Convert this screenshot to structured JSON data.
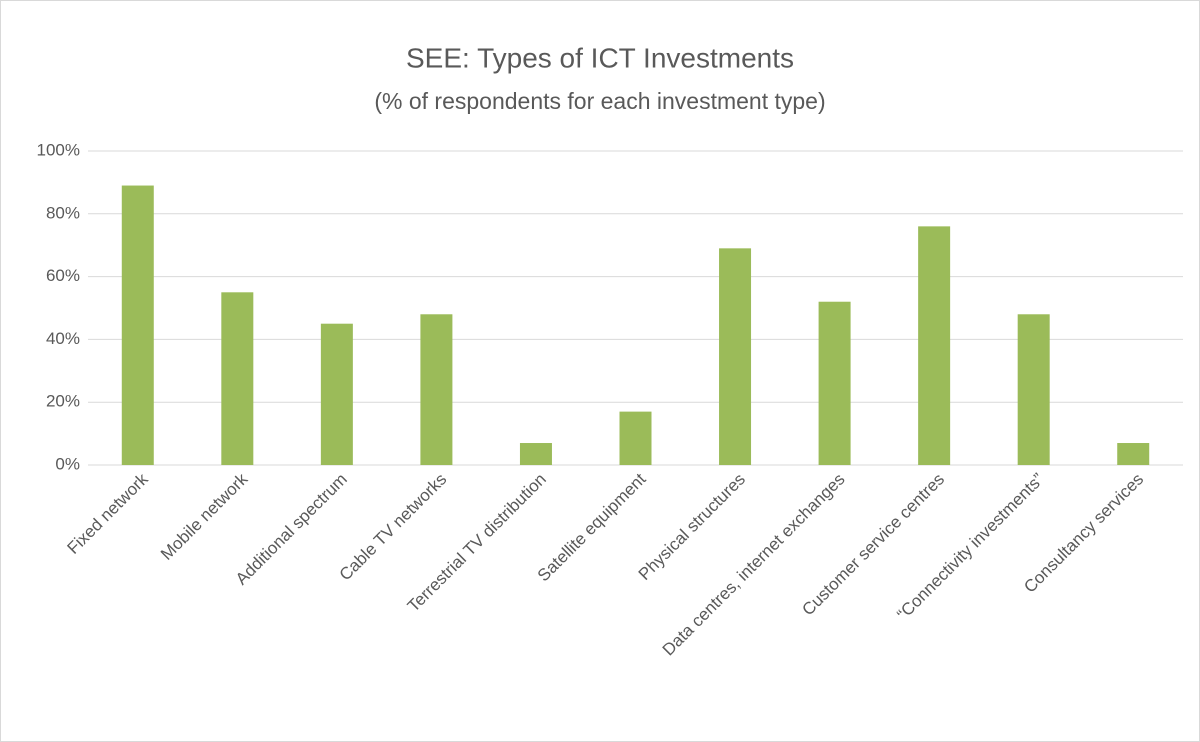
{
  "chart_data": {
    "type": "bar",
    "title": "SEE: Types of ICT Investments",
    "subtitle": "(%  of respondents for each investment type)",
    "categories": [
      "Fixed network",
      "Mobile network",
      "Additional spectrum",
      "Cable TV networks",
      "Terrestrial TV distribution",
      "Satellite equipment",
      "Physical structures",
      "Data centres, internet exchanges",
      "Customer service centres",
      "“Connectivity investments”",
      "Consultancy services"
    ],
    "values": [
      89,
      55,
      45,
      48,
      7,
      17,
      69,
      52,
      76,
      48,
      7
    ],
    "color": "#9bbb59",
    "ylim": [
      0,
      100
    ],
    "yticks": [
      {
        "value": 0,
        "label": "0%"
      },
      {
        "value": 20,
        "label": "20%"
      },
      {
        "value": 40,
        "label": "40%"
      },
      {
        "value": 60,
        "label": "60%"
      },
      {
        "value": 80,
        "label": "80%"
      },
      {
        "value": 100,
        "label": "100%"
      }
    ],
    "grid": true
  }
}
